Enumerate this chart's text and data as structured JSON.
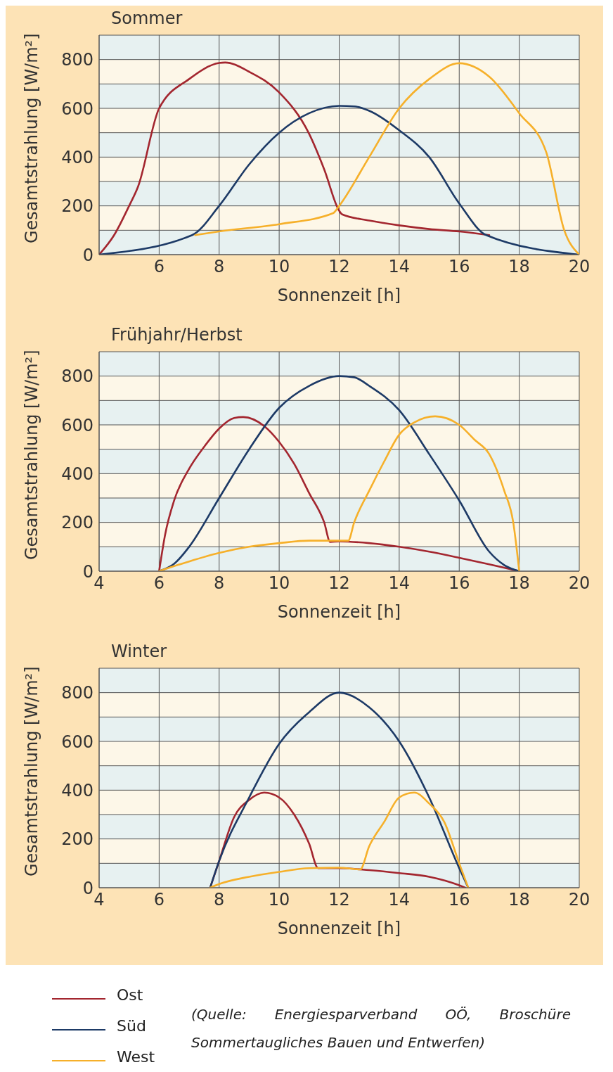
{
  "chart_data": [
    {
      "type": "line",
      "title": "Sommer",
      "xlabel": "Sonnenzeit [h]",
      "ylabel": "Gesamtstrahlung [W/m²]",
      "xlim": [
        4,
        20
      ],
      "xticks": [
        6,
        8,
        10,
        12,
        14,
        16,
        18,
        20
      ],
      "ylim": [
        0,
        900
      ],
      "yticks": [
        0,
        {
          "value": 100,
          "label": null
        },
        200,
        {
          "value": 300,
          "label": null
        },
        400,
        {
          "value": 500,
          "label": null
        },
        600,
        {
          "value": 700,
          "label": null
        },
        800,
        {
          "value": 900,
          "label": null
        }
      ],
      "grid": true,
      "legend": false,
      "series": [
        {
          "color": "#a3262f",
          "x": [
            4,
            4.5,
            5,
            5.3,
            6,
            7,
            8,
            8.2,
            9,
            10,
            11,
            11.5,
            12,
            12.1,
            13,
            14,
            15,
            16,
            17
          ],
          "values": [
            0,
            80,
            200,
            280,
            600,
            720,
            786,
            788,
            750,
            665,
            495,
            350,
            180,
            165,
            140,
            120,
            105,
            95,
            80
          ]
        },
        {
          "color": "#1d3a66",
          "x": [
            4,
            7.1,
            8,
            9,
            10,
            11,
            12,
            12.5,
            13,
            14,
            15,
            16,
            16.9,
            20
          ],
          "values": [
            0,
            80,
            200,
            370,
            500,
            580,
            610,
            608,
            590,
            510,
            400,
            210,
            80,
            0
          ]
        },
        {
          "color": "#f6b02a",
          "x": [
            7.2,
            8,
            10,
            11.8,
            12,
            13,
            14,
            15,
            16,
            17,
            18,
            18.9,
            19.5,
            20
          ],
          "values": [
            80,
            95,
            125,
            170,
            200,
            400,
            600,
            720,
            785,
            730,
            580,
            420,
            100,
            0
          ]
        }
      ]
    },
    {
      "type": "line",
      "title": "Frühjahr/Herbst",
      "xlabel": "Sonnenzeit [h]",
      "ylabel": "Gesamtstrahlung [W/m²]",
      "xlim": [
        4,
        20
      ],
      "xticks": [
        4,
        6,
        8,
        10,
        12,
        14,
        16,
        18,
        20
      ],
      "ylim": [
        0,
        900
      ],
      "yticks": [
        0,
        {
          "value": 100,
          "label": null
        },
        200,
        {
          "value": 300,
          "label": null
        },
        400,
        {
          "value": 500,
          "label": null
        },
        600,
        {
          "value": 700,
          "label": null
        },
        800,
        {
          "value": 900,
          "label": null
        }
      ],
      "grid": true,
      "legend": false,
      "series": [
        {
          "color": "#a3262f",
          "x": [
            6,
            6.2,
            6.5,
            7,
            7.5,
            8,
            8.5,
            8.8,
            9.5,
            10,
            10.5,
            11,
            11.5,
            11.7,
            12,
            13,
            14,
            15,
            16,
            17,
            18
          ],
          "values": [
            0,
            150,
            290,
            420,
            510,
            585,
            628,
            632,
            595,
            530,
            440,
            320,
            200,
            120,
            122,
            115,
            100,
            80,
            55,
            28,
            0
          ]
        },
        {
          "color": "#1d3a66",
          "x": [
            6,
            6.5,
            7,
            8,
            9,
            10,
            11,
            12,
            12.5,
            13,
            14,
            15,
            16,
            17,
            17.5,
            18
          ],
          "values": [
            0,
            30,
            100,
            300,
            500,
            670,
            760,
            800,
            795,
            760,
            660,
            480,
            290,
            80,
            25,
            0
          ]
        },
        {
          "color": "#f6b02a",
          "x": [
            6,
            7,
            8,
            9,
            10,
            11,
            12.3,
            12.5,
            13,
            13.5,
            14,
            14.5,
            15.2,
            16,
            16.5,
            17,
            17.5,
            17.8,
            18
          ],
          "values": [
            0,
            40,
            75,
            100,
            115,
            125,
            125,
            200,
            330,
            450,
            560,
            610,
            635,
            600,
            540,
            480,
            330,
            200,
            0
          ]
        }
      ]
    },
    {
      "type": "line",
      "title": "Winter",
      "xlabel": "Sonnenzeit [h]",
      "ylabel": "Gesamtstrahlung [W/m²]",
      "xlim": [
        4,
        20
      ],
      "xticks": [
        4,
        6,
        8,
        10,
        12,
        14,
        16,
        18,
        20
      ],
      "ylim": [
        0,
        900
      ],
      "yticks": [
        0,
        {
          "value": 100,
          "label": null
        },
        200,
        {
          "value": 300,
          "label": null
        },
        400,
        {
          "value": 500,
          "label": null
        },
        600,
        {
          "value": 700,
          "label": null
        },
        800,
        {
          "value": 900,
          "label": null
        }
      ],
      "grid": true,
      "legend": "bottom left",
      "annotations": [
        "(Quelle: Energiesparverband OÖ, Broschüre Sommertaugliches Bauen und Entwerfen)"
      ],
      "series": [
        {
          "name": "Ost",
          "color": "#a3262f",
          "x": [
            7.7,
            8,
            8.5,
            9,
            9.5,
            10,
            10.5,
            11,
            11.3,
            12,
            13,
            14,
            15,
            16,
            16.2
          ],
          "values": [
            0,
            110,
            290,
            360,
            390,
            370,
            300,
            180,
            80,
            80,
            72,
            60,
            45,
            10,
            0
          ]
        },
        {
          "name": "Süd",
          "color": "#1d3a66",
          "x": [
            7.7,
            8,
            9,
            10,
            11,
            12,
            13,
            14,
            15,
            16,
            16.3
          ],
          "values": [
            0,
            110,
            370,
            590,
            720,
            800,
            740,
            600,
            370,
            80,
            0
          ]
        },
        {
          "name": "West",
          "color": "#f6b02a",
          "x": [
            7.7,
            8,
            9,
            10,
            11,
            12,
            12.7,
            13,
            13.5,
            14,
            14.5,
            15,
            15.5,
            16,
            16.3
          ],
          "values": [
            0,
            15,
            45,
            65,
            80,
            82,
            75,
            170,
            270,
            370,
            390,
            345,
            270,
            100,
            0
          ]
        }
      ]
    }
  ]
}
